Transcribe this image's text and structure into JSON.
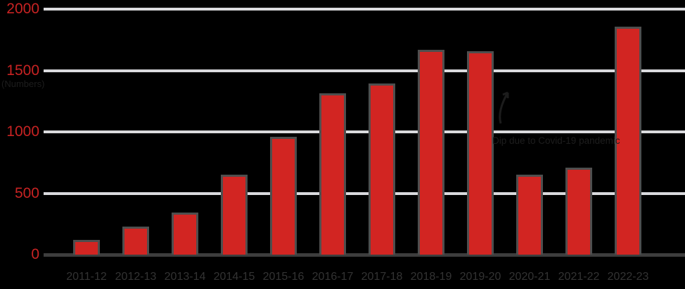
{
  "chart_data": {
    "type": "bar",
    "title": "",
    "xlabel": "",
    "ylabel": "",
    "categories": [
      "2011-12",
      "2012-13",
      "2013-14",
      "2014-15",
      "2015-16",
      "2016-17",
      "2017-18",
      "2018-19",
      "2019-20",
      "2020-21",
      "2021-22",
      "2022-23"
    ],
    "values": [
      100,
      210,
      325,
      635,
      945,
      1300,
      1375,
      1650,
      1640,
      635,
      690,
      1840
    ],
    "ylim": [
      0,
      2000
    ],
    "yticks": [
      0,
      500,
      1000,
      1500,
      2000
    ],
    "ytick_labels": [
      "0",
      "500",
      "1000",
      "1500",
      "2000"
    ],
    "grid": "horizontal",
    "legend": "none",
    "colors": {
      "bar_fill": "#d22522",
      "bar_border": "#4e4e4e",
      "gridline": "#dadadd",
      "axis_line": "#3d3d3d",
      "ytick_text": "#c82323",
      "xtick_text": "#333333",
      "faint_text": "#1d1d1d",
      "background": "#000000"
    },
    "annotations": [
      {
        "id": "axis-unit-label",
        "text": "(Numbers)"
      },
      {
        "id": "covid-dip-note",
        "text": "Dip due to Covid-19 pandemic"
      }
    ]
  }
}
